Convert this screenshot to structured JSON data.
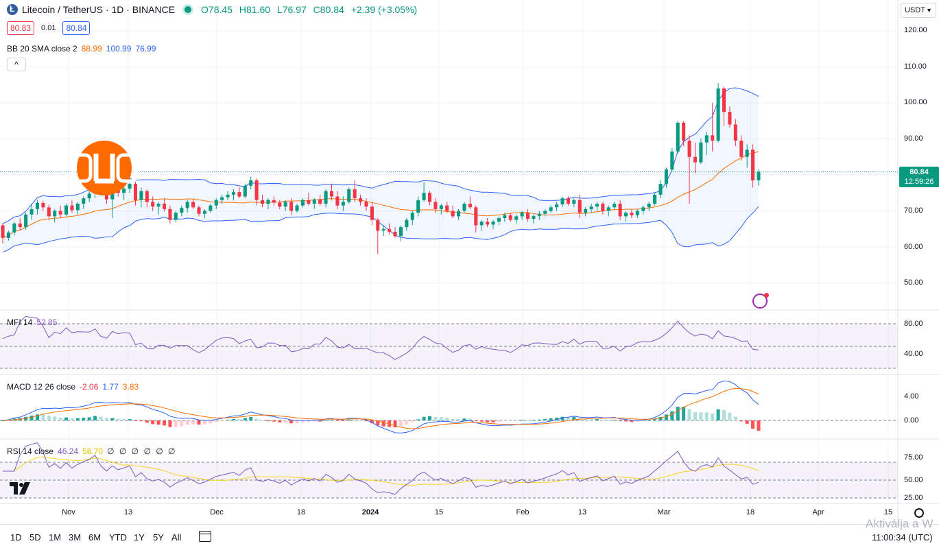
{
  "symbol": {
    "title": "Litecoin / TetherUS · 1D · BINANCE",
    "ohlc": {
      "o": "O78.45",
      "h": "H81.60",
      "l": "L76.97",
      "c": "C80.84",
      "chg": "+2.39 (+3.05%)"
    },
    "bid": "80.83",
    "spread": "0.01",
    "ask": "80.84"
  },
  "currency_select": "USDT",
  "last_price": {
    "value": "80.84",
    "countdown": "12:59:26"
  },
  "indicators": {
    "bb": {
      "name": "BB 20 SMA close 2",
      "basis": "88.99",
      "upper": "100.99",
      "lower": "76.99"
    },
    "mfi": {
      "name": "MFI 14",
      "value": "52.85"
    },
    "macd": {
      "name": "MACD 12 26 close",
      "hist": "-2.06",
      "macd": "1.77",
      "signal": "3.83"
    },
    "rsi": {
      "name": "RSI 14 close",
      "value": "46.24",
      "ma": "58.70",
      "extra": "∅ ∅ ∅ ∅ ∅ ∅"
    }
  },
  "price_axis": [
    "120.00",
    "110.00",
    "100.00",
    "90.00",
    "80.00",
    "70.00",
    "60.00",
    "50.00"
  ],
  "mfi_axis": [
    "80.00",
    "40.00"
  ],
  "macd_axis": [
    "4.00",
    "0.00"
  ],
  "rsi_axis": [
    "75.00",
    "50.00",
    "25.00"
  ],
  "time_axis": [
    {
      "label": "Nov",
      "bold": false
    },
    {
      "label": "13",
      "bold": false
    },
    {
      "label": "Dec",
      "bold": false
    },
    {
      "label": "18",
      "bold": false
    },
    {
      "label": "2024",
      "bold": true
    },
    {
      "label": "15",
      "bold": false
    },
    {
      "label": "Feb",
      "bold": false
    },
    {
      "label": "13",
      "bold": false
    },
    {
      "label": "Mar",
      "bold": false
    },
    {
      "label": "18",
      "bold": false
    },
    {
      "label": "Apr",
      "bold": false
    },
    {
      "label": "15",
      "bold": false
    }
  ],
  "timeframes": [
    "1D",
    "5D",
    "1M",
    "3M",
    "6M",
    "YTD",
    "1Y",
    "5Y",
    "All"
  ],
  "clock": "11:00:34 (UTC)",
  "watermark": "Aktiválja a W",
  "colors": {
    "up": "#089981",
    "down": "#f23645",
    "bb": "#2962ff",
    "basis": "#ff6d00",
    "oscillator": "#7e57c2",
    "rsi_ma": "#f7d21e"
  },
  "chart_data": {
    "type": "candlestick",
    "y_range": [
      45,
      125
    ],
    "candles": [
      [
        66.0,
        66.5,
        61.0,
        62.5
      ],
      [
        62.5,
        64.5,
        61.8,
        64.0
      ],
      [
        64.0,
        67.0,
        63.2,
        66.5
      ],
      [
        66.5,
        68.0,
        64.5,
        65.5
      ],
      [
        65.5,
        69.5,
        64.8,
        69.0
      ],
      [
        69.0,
        72.0,
        67.5,
        70.5
      ],
      [
        70.5,
        73.0,
        69.0,
        72.2
      ],
      [
        72.2,
        72.8,
        70.0,
        71.0
      ],
      [
        71.0,
        71.8,
        67.5,
        68.5
      ],
      [
        68.5,
        70.5,
        66.8,
        70.0
      ],
      [
        70.0,
        71.5,
        68.0,
        69.0
      ],
      [
        69.0,
        72.0,
        68.5,
        71.5
      ],
      [
        71.5,
        73.0,
        69.5,
        70.2
      ],
      [
        70.2,
        72.5,
        69.0,
        72.0
      ],
      [
        72.0,
        74.0,
        70.5,
        73.5
      ],
      [
        73.5,
        75.5,
        72.5,
        74.8
      ],
      [
        74.8,
        79.0,
        73.5,
        78.0
      ],
      [
        78.0,
        79.5,
        74.5,
        75.0
      ],
      [
        75.0,
        76.5,
        72.0,
        73.2
      ],
      [
        73.2,
        77.0,
        68.0,
        76.5
      ],
      [
        76.5,
        78.5,
        74.0,
        75.0
      ],
      [
        75.0,
        77.0,
        73.0,
        76.2
      ],
      [
        76.2,
        80.0,
        75.0,
        77.5
      ],
      [
        77.5,
        78.0,
        71.5,
        73.0
      ],
      [
        73.0,
        76.5,
        71.0,
        75.5
      ],
      [
        75.5,
        76.0,
        71.0,
        72.5
      ],
      [
        72.5,
        74.0,
        70.0,
        71.2
      ],
      [
        71.2,
        72.5,
        69.0,
        72.0
      ],
      [
        72.0,
        73.5,
        69.8,
        70.5
      ],
      [
        70.5,
        71.5,
        66.5,
        67.5
      ],
      [
        67.5,
        70.0,
        66.8,
        69.5
      ],
      [
        69.5,
        71.5,
        68.5,
        70.8
      ],
      [
        70.8,
        73.0,
        69.5,
        72.5
      ],
      [
        72.5,
        73.5,
        70.5,
        71.0
      ],
      [
        71.0,
        71.5,
        68.5,
        69.2
      ],
      [
        69.2,
        70.5,
        68.0,
        70.0
      ],
      [
        70.0,
        72.0,
        69.5,
        71.5
      ],
      [
        71.5,
        73.5,
        70.5,
        73.0
      ],
      [
        73.0,
        74.5,
        72.0,
        73.8
      ],
      [
        73.8,
        75.5,
        73.0,
        74.5
      ],
      [
        74.5,
        76.0,
        73.0,
        75.2
      ],
      [
        75.2,
        76.5,
        73.5,
        74.0
      ],
      [
        74.0,
        77.5,
        73.5,
        77.0
      ],
      [
        77.0,
        79.5,
        76.0,
        78.5
      ],
      [
        78.5,
        79.0,
        71.5,
        73.0
      ],
      [
        73.0,
        74.5,
        71.0,
        72.0
      ],
      [
        72.0,
        73.5,
        70.5,
        73.0
      ],
      [
        73.0,
        74.0,
        71.5,
        72.3
      ],
      [
        72.3,
        73.0,
        70.5,
        71.2
      ],
      [
        71.2,
        73.0,
        70.0,
        72.5
      ],
      [
        72.5,
        73.5,
        69.0,
        70.0
      ],
      [
        70.0,
        72.0,
        69.5,
        71.5
      ],
      [
        71.5,
        73.5,
        71.0,
        73.0
      ],
      [
        73.0,
        75.0,
        71.5,
        72.0
      ],
      [
        72.0,
        73.5,
        70.5,
        73.2
      ],
      [
        73.2,
        74.5,
        71.5,
        72.0
      ],
      [
        72.0,
        76.0,
        71.0,
        75.5
      ],
      [
        75.5,
        77.5,
        73.0,
        74.0
      ],
      [
        74.0,
        75.5,
        70.5,
        71.5
      ],
      [
        71.5,
        74.0,
        70.0,
        72.5
      ],
      [
        72.5,
        76.5,
        72.0,
        76.0
      ],
      [
        76.0,
        78.5,
        72.5,
        73.5
      ],
      [
        73.5,
        74.5,
        71.5,
        72.5
      ],
      [
        72.5,
        73.5,
        70.0,
        71.2
      ],
      [
        71.2,
        72.5,
        66.0,
        67.5
      ],
      [
        67.5,
        68.0,
        58.0,
        64.5
      ],
      [
        64.5,
        66.0,
        63.0,
        65.0
      ],
      [
        65.0,
        66.5,
        63.5,
        64.2
      ],
      [
        64.2,
        65.5,
        62.5,
        63.0
      ],
      [
        63.0,
        66.0,
        61.5,
        65.5
      ],
      [
        65.5,
        68.0,
        64.5,
        67.5
      ],
      [
        67.5,
        70.0,
        66.0,
        69.5
      ],
      [
        69.5,
        74.0,
        68.5,
        73.0
      ],
      [
        73.0,
        78.0,
        72.5,
        75.0
      ],
      [
        75.0,
        75.5,
        71.5,
        72.5
      ],
      [
        72.5,
        73.5,
        69.5,
        70.5
      ],
      [
        70.5,
        72.0,
        69.0,
        71.5
      ],
      [
        71.5,
        72.5,
        69.5,
        70.0
      ],
      [
        70.0,
        71.5,
        68.0,
        68.5
      ],
      [
        68.5,
        70.5,
        67.5,
        70.0
      ],
      [
        70.0,
        72.5,
        69.5,
        72.0
      ],
      [
        72.0,
        74.0,
        70.5,
        71.0
      ],
      [
        71.0,
        71.5,
        64.0,
        66.0
      ],
      [
        66.0,
        67.5,
        64.5,
        67.0
      ],
      [
        67.0,
        68.0,
        65.5,
        66.2
      ],
      [
        66.2,
        67.5,
        65.0,
        67.0
      ],
      [
        67.0,
        68.5,
        66.0,
        68.0
      ],
      [
        68.0,
        69.5,
        67.0,
        68.8
      ],
      [
        68.8,
        69.5,
        67.0,
        67.5
      ],
      [
        67.5,
        69.0,
        66.5,
        68.5
      ],
      [
        68.5,
        70.0,
        67.5,
        69.5
      ],
      [
        69.5,
        70.5,
        67.0,
        67.8
      ],
      [
        67.8,
        69.0,
        66.5,
        68.6
      ],
      [
        68.6,
        70.0,
        67.5,
        69.2
      ],
      [
        69.2,
        70.5,
        68.5,
        70.0
      ],
      [
        70.0,
        71.5,
        69.5,
        71.0
      ],
      [
        71.0,
        72.5,
        70.0,
        71.8
      ],
      [
        71.8,
        74.0,
        71.0,
        73.5
      ],
      [
        73.5,
        74.0,
        71.5,
        72.0
      ],
      [
        72.0,
        73.5,
        71.0,
        73.0
      ],
      [
        73.0,
        74.5,
        68.0,
        69.5
      ],
      [
        69.5,
        71.0,
        68.5,
        70.5
      ],
      [
        70.5,
        72.0,
        69.5,
        71.2
      ],
      [
        71.2,
        72.5,
        70.0,
        72.0
      ],
      [
        72.0,
        72.5,
        69.0,
        70.0
      ],
      [
        70.0,
        71.5,
        68.5,
        71.0
      ],
      [
        71.0,
        72.5,
        70.5,
        72.0
      ],
      [
        72.0,
        73.0,
        67.5,
        68.5
      ],
      [
        68.5,
        70.0,
        67.0,
        69.5
      ],
      [
        69.5,
        70.5,
        68.0,
        68.8
      ],
      [
        68.8,
        70.5,
        68.0,
        70.0
      ],
      [
        70.0,
        71.5,
        69.0,
        71.0
      ],
      [
        71.0,
        72.5,
        70.0,
        72.0
      ],
      [
        72.0,
        75.0,
        71.5,
        74.5
      ],
      [
        74.5,
        78.5,
        73.5,
        77.5
      ],
      [
        77.5,
        82.0,
        76.5,
        81.5
      ],
      [
        81.5,
        87.5,
        81.0,
        86.5
      ],
      [
        86.5,
        95.0,
        86.0,
        94.5
      ],
      [
        94.5,
        95.0,
        88.0,
        89.5
      ],
      [
        89.5,
        91.0,
        72.0,
        85.0
      ],
      [
        85.0,
        89.0,
        80.5,
        83.5
      ],
      [
        83.5,
        90.0,
        83.0,
        89.0
      ],
      [
        89.0,
        92.0,
        85.5,
        91.0
      ],
      [
        91.0,
        100.0,
        86.5,
        89.5
      ],
      [
        89.5,
        105.5,
        89.0,
        104.0
      ],
      [
        104.0,
        104.5,
        93.5,
        97.5
      ],
      [
        97.5,
        99.0,
        93.0,
        94.0
      ],
      [
        94.0,
        95.5,
        88.0,
        89.5
      ],
      [
        89.5,
        91.0,
        84.0,
        85.0
      ],
      [
        85.0,
        88.5,
        82.0,
        87.0
      ],
      [
        87.0,
        88.5,
        76.5,
        78.5
      ],
      [
        78.5,
        81.6,
        76.97,
        80.84
      ]
    ]
  }
}
